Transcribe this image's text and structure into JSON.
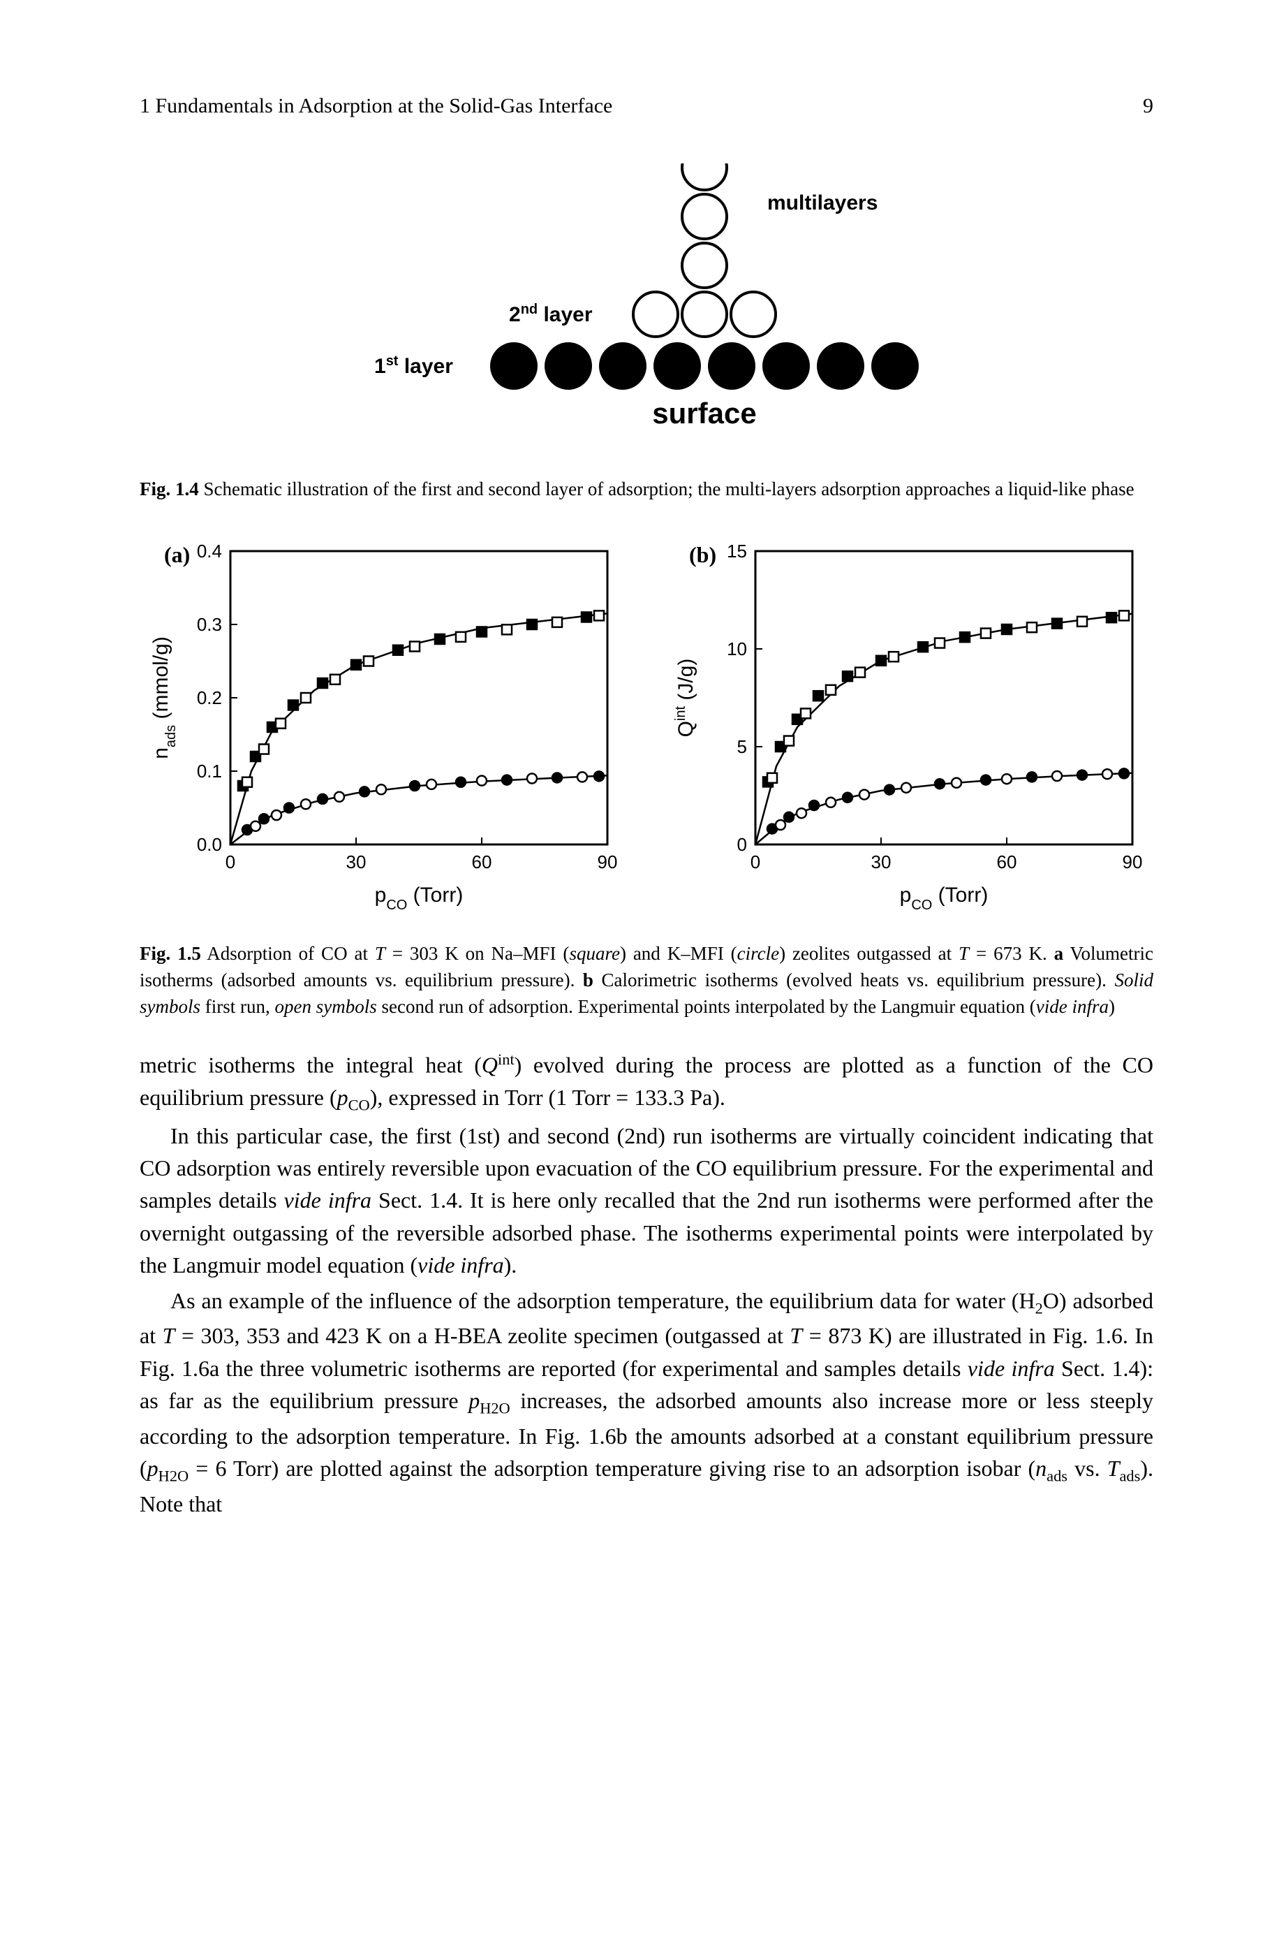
{
  "page": {
    "running_head": "1   Fundamentals in Adsorption at the Solid-Gas Interface",
    "page_number": "9"
  },
  "fig4": {
    "labels": {
      "first_layer": "1",
      "first_layer_suffix": "st",
      "first_layer_word": " layer",
      "second_layer": "2",
      "second_layer_suffix": "nd",
      "second_layer_word": " layer",
      "multilayers": "multilayers",
      "surface": "surface"
    },
    "caption_label": "Fig. 1.4",
    "caption_text": "  Schematic illustration of the first and second layer of adsorption; the multi-layers adsorption approaches a liquid-like phase",
    "colors": {
      "filled": "#000000",
      "stroke": "#000000",
      "open_fill": "#ffffff"
    }
  },
  "fig5": {
    "a": {
      "panel_label": "(a)",
      "xlabel": "p",
      "xlabel_sub": "CO",
      "xlabel_unit": " (Torr)",
      "ylabel": "n",
      "ylabel_sub": "ads",
      "ylabel_unit": " (mmol/g)",
      "xlim": [
        0,
        90
      ],
      "ylim": [
        0.0,
        0.4
      ],
      "xticks": [
        0,
        30,
        60,
        90
      ],
      "yticks": [
        0.0,
        0.1,
        0.2,
        0.3,
        0.4
      ],
      "ytick_labels": [
        "0.0",
        "0.1",
        "0.2",
        "0.3",
        "0.4"
      ],
      "series": {
        "square_solid": {
          "marker": "square",
          "fill": "#000000",
          "stroke": "#000000",
          "points": [
            [
              3,
              0.08
            ],
            [
              6,
              0.12
            ],
            [
              10,
              0.16
            ],
            [
              15,
              0.19
            ],
            [
              22,
              0.22
            ],
            [
              30,
              0.245
            ],
            [
              40,
              0.265
            ],
            [
              50,
              0.28
            ],
            [
              60,
              0.29
            ],
            [
              72,
              0.3
            ],
            [
              85,
              0.31
            ]
          ]
        },
        "square_open": {
          "marker": "square",
          "fill": "#ffffff",
          "stroke": "#000000",
          "points": [
            [
              4,
              0.085
            ],
            [
              8,
              0.13
            ],
            [
              12,
              0.165
            ],
            [
              18,
              0.2
            ],
            [
              25,
              0.225
            ],
            [
              33,
              0.25
            ],
            [
              44,
              0.27
            ],
            [
              55,
              0.283
            ],
            [
              66,
              0.293
            ],
            [
              78,
              0.303
            ],
            [
              88,
              0.312
            ]
          ]
        },
        "circle_solid": {
          "marker": "circle",
          "fill": "#000000",
          "stroke": "#000000",
          "points": [
            [
              4,
              0.02
            ],
            [
              8,
              0.035
            ],
            [
              14,
              0.05
            ],
            [
              22,
              0.062
            ],
            [
              32,
              0.072
            ],
            [
              44,
              0.08
            ],
            [
              55,
              0.085
            ],
            [
              66,
              0.088
            ],
            [
              78,
              0.091
            ],
            [
              88,
              0.093
            ]
          ]
        },
        "circle_open": {
          "marker": "circle",
          "fill": "#ffffff",
          "stroke": "#000000",
          "points": [
            [
              6,
              0.025
            ],
            [
              11,
              0.04
            ],
            [
              18,
              0.055
            ],
            [
              26,
              0.065
            ],
            [
              36,
              0.075
            ],
            [
              48,
              0.082
            ],
            [
              60,
              0.087
            ],
            [
              72,
              0.09
            ],
            [
              84,
              0.092
            ]
          ]
        }
      },
      "curves": {
        "upper": [
          [
            0,
            0
          ],
          [
            5,
            0.1
          ],
          [
            10,
            0.155
          ],
          [
            20,
            0.21
          ],
          [
            30,
            0.245
          ],
          [
            45,
            0.275
          ],
          [
            60,
            0.295
          ],
          [
            75,
            0.305
          ],
          [
            90,
            0.315
          ]
        ],
        "lower": [
          [
            0,
            0
          ],
          [
            5,
            0.022
          ],
          [
            10,
            0.04
          ],
          [
            20,
            0.058
          ],
          [
            30,
            0.07
          ],
          [
            45,
            0.08
          ],
          [
            60,
            0.086
          ],
          [
            75,
            0.09
          ],
          [
            90,
            0.094
          ]
        ]
      }
    },
    "b": {
      "panel_label": "(b)",
      "xlabel": "p",
      "xlabel_sub": "CO",
      "xlabel_unit": " (Torr)",
      "ylabel": "Q",
      "ylabel_sup": "int",
      "ylabel_unit": " (J/g)",
      "xlim": [
        0,
        90
      ],
      "ylim": [
        0,
        15
      ],
      "xticks": [
        0,
        30,
        60,
        90
      ],
      "yticks": [
        0,
        5,
        10,
        15
      ],
      "series": {
        "square_solid": {
          "marker": "square",
          "fill": "#000000",
          "stroke": "#000000",
          "points": [
            [
              3,
              3.2
            ],
            [
              6,
              5.0
            ],
            [
              10,
              6.4
            ],
            [
              15,
              7.6
            ],
            [
              22,
              8.6
            ],
            [
              30,
              9.4
            ],
            [
              40,
              10.1
            ],
            [
              50,
              10.6
            ],
            [
              60,
              11.0
            ],
            [
              72,
              11.3
            ],
            [
              85,
              11.6
            ]
          ]
        },
        "square_open": {
          "marker": "square",
          "fill": "#ffffff",
          "stroke": "#000000",
          "points": [
            [
              4,
              3.4
            ],
            [
              8,
              5.3
            ],
            [
              12,
              6.7
            ],
            [
              18,
              7.9
            ],
            [
              25,
              8.8
            ],
            [
              33,
              9.6
            ],
            [
              44,
              10.3
            ],
            [
              55,
              10.8
            ],
            [
              66,
              11.1
            ],
            [
              78,
              11.4
            ],
            [
              88,
              11.7
            ]
          ]
        },
        "circle_solid": {
          "marker": "circle",
          "fill": "#000000",
          "stroke": "#000000",
          "points": [
            [
              4,
              0.8
            ],
            [
              8,
              1.4
            ],
            [
              14,
              2.0
            ],
            [
              22,
              2.4
            ],
            [
              32,
              2.8
            ],
            [
              44,
              3.1
            ],
            [
              55,
              3.3
            ],
            [
              66,
              3.45
            ],
            [
              78,
              3.55
            ],
            [
              88,
              3.63
            ]
          ]
        },
        "circle_open": {
          "marker": "circle",
          "fill": "#ffffff",
          "stroke": "#000000",
          "points": [
            [
              6,
              1.0
            ],
            [
              11,
              1.6
            ],
            [
              18,
              2.15
            ],
            [
              26,
              2.55
            ],
            [
              36,
              2.9
            ],
            [
              48,
              3.15
            ],
            [
              60,
              3.35
            ],
            [
              72,
              3.5
            ],
            [
              84,
              3.6
            ]
          ]
        }
      },
      "curves": {
        "upper": [
          [
            0,
            0
          ],
          [
            5,
            4.0
          ],
          [
            10,
            6.0
          ],
          [
            20,
            8.1
          ],
          [
            30,
            9.4
          ],
          [
            45,
            10.4
          ],
          [
            60,
            11.0
          ],
          [
            75,
            11.4
          ],
          [
            90,
            11.8
          ]
        ],
        "lower": [
          [
            0,
            0
          ],
          [
            5,
            0.9
          ],
          [
            10,
            1.6
          ],
          [
            20,
            2.3
          ],
          [
            30,
            2.75
          ],
          [
            45,
            3.1
          ],
          [
            60,
            3.35
          ],
          [
            75,
            3.52
          ],
          [
            90,
            3.65
          ]
        ]
      }
    },
    "caption_label": "Fig. 1.5",
    "caption_body": "  Adsorption of CO at ",
    "colors": {
      "axis": "#000000",
      "curve": "#000000",
      "background": "#ffffff"
    }
  },
  "body": {
    "p1": "metric isotherms the integral heat (",
    "p1_q": "Q",
    "p1_sup": "int",
    "p1_b": ") evolved during the process are plotted as a function of the CO equilibrium pressure (",
    "p1_pco_p": "p",
    "p1_pco_sub": "CO",
    "p1_c": "), expressed in Torr (1 Torr = 133.3 Pa).",
    "p2a": "In this particular case, the first (1st) and second (2nd) run isotherms are virtually coincident indicating that CO adsorption was entirely reversible upon evacuation of the CO equilibrium pressure. For the experimental and samples details ",
    "p2_vide": "vide infra",
    "p2b": " Sect. 1.4. It is here only recalled that the 2nd run isotherms were performed after the overnight outgassing of the reversible adsorbed phase. The isotherms experimental points were interpolated by the Langmuir model equation (",
    "p2_vide2": "vide infra",
    "p2c": ").",
    "p3a": "As an example of the influence of the adsorption temperature, the equilibrium data for water (H",
    "p3_sub2": "2",
    "p3b": "O) adsorbed at ",
    "p3_T": "T",
    "p3c": " = 303, 353 and 423 K on a H-BEA zeolite specimen (outgassed at ",
    "p3_T2": "T",
    "p3d": " = 873 K) are illustrated in Fig. 1.6. In Fig. 1.6a the three volumetric isotherms are reported (for experimental and samples details ",
    "p3_vide": "vide infra",
    "p3e": " Sect. 1.4): as far as the equilibrium pressure ",
    "p3_ph2o_p": "p",
    "p3_ph2o_sub": "H2O",
    "p3f": " increases, the adsorbed amounts also increase more or less steeply according to the adsorption temperature. In Fig. 1.6b the amounts adsorbed at a constant equilibrium pressure (",
    "p3_ph2o_p2": "p",
    "p3_ph2o_sub2": "H2O",
    "p3g": " = 6 Torr) are plotted against the adsorption temperature giving rise to an adsorption isobar (",
    "p3_nads_n": "n",
    "p3_nads_sub": "ads",
    "p3h": " vs. ",
    "p3_Tads_T": "T",
    "p3_Tads_sub": "ads",
    "p3i": "). Note that"
  },
  "caption5": {
    "t1": " = 303 K on Na–MFI (",
    "square": "square",
    "t2": ") and K–MFI (",
    "circle": "circle",
    "t3": ") zeolites outgassed at ",
    "T2": "T",
    "t4": " = 673 K. ",
    "a_bold": "a",
    "t5": " Volumetric isotherms (adsorbed amounts vs. equilibrium pressure). ",
    "b_bold": "b",
    "t6": " Calorimetric isotherms (evolved heats vs. equilibrium pressure). ",
    "solid": "Solid symbols",
    "t7": " first run, ",
    "open": "open symbols",
    "t8": " second run of adsorption. Experimental points interpolated by the Langmuir equation (",
    "vide": "vide infra",
    "t9": ")"
  }
}
